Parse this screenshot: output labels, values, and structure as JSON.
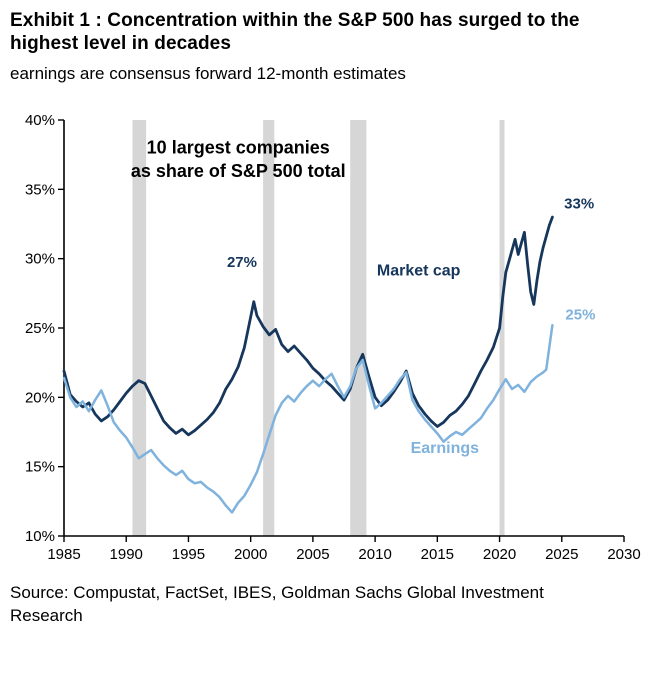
{
  "header": {
    "title": "Exhibit 1 : Concentration within the S&P 500 has surged to the highest level in decades",
    "subtitle": "earnings are consensus forward 12-month estimates"
  },
  "footer": {
    "source": "Source: Compustat, FactSet, IBES, Goldman Sachs Global Investment Research"
  },
  "chart_data": {
    "type": "line",
    "title": "10 largest companies as share of S&P 500 total",
    "xlabel": "",
    "ylabel": "",
    "xlim": [
      1985,
      2030
    ],
    "ylim": [
      10,
      40
    ],
    "x_ticks": [
      1985,
      1990,
      1995,
      2000,
      2005,
      2010,
      2015,
      2020,
      2025,
      2030
    ],
    "y_ticks": [
      10,
      15,
      20,
      25,
      30,
      35,
      40
    ],
    "y_tick_suffix": "%",
    "grid": false,
    "legend_position": "inline-labels",
    "colors": {
      "market_cap": "#16365c",
      "earnings": "#7fb2dc",
      "recession_band": "#d6d6d6",
      "axis": "#000000"
    },
    "recession_bands": [
      [
        1990.5,
        1991.6
      ],
      [
        2001.0,
        2001.9
      ],
      [
        2008.0,
        2009.3
      ],
      [
        2020.0,
        2020.4
      ]
    ],
    "series": [
      {
        "name": "Market cap",
        "color": "#16365c",
        "end_label": "33%",
        "x": [
          1985,
          1985.5,
          1986,
          1986.5,
          1987,
          1987.5,
          1988,
          1988.5,
          1989,
          1989.5,
          1990,
          1990.5,
          1991,
          1991.5,
          1992,
          1992.5,
          1993,
          1993.5,
          1994,
          1994.5,
          1995,
          1995.5,
          1996,
          1996.5,
          1997,
          1997.5,
          1998,
          1998.5,
          1999,
          1999.5,
          2000,
          2000.25,
          2000.5,
          2001,
          2001.5,
          2002,
          2002.5,
          2003,
          2003.5,
          2004,
          2004.5,
          2005,
          2005.5,
          2006,
          2006.5,
          2007,
          2007.5,
          2008,
          2008.5,
          2009,
          2009.5,
          2010,
          2010.5,
          2011,
          2011.5,
          2012,
          2012.5,
          2013,
          2013.5,
          2014,
          2014.5,
          2015,
          2015.5,
          2016,
          2016.5,
          2017,
          2017.5,
          2018,
          2018.5,
          2019,
          2019.5,
          2020,
          2020.25,
          2020.5,
          2021,
          2021.25,
          2021.5,
          2022,
          2022.25,
          2022.5,
          2022.75,
          2023,
          2023.25,
          2023.5,
          2023.75,
          2024,
          2024.25
        ],
        "values": [
          21.9,
          20.2,
          19.7,
          19.3,
          19.6,
          18.8,
          18.3,
          18.6,
          19.1,
          19.7,
          20.3,
          20.8,
          21.2,
          21.0,
          20.1,
          19.2,
          18.3,
          17.8,
          17.4,
          17.7,
          17.3,
          17.6,
          18.0,
          18.4,
          18.9,
          19.6,
          20.6,
          21.3,
          22.2,
          23.6,
          25.8,
          26.9,
          25.9,
          25.1,
          24.5,
          24.9,
          23.8,
          23.3,
          23.7,
          23.2,
          22.7,
          22.1,
          21.7,
          21.2,
          20.8,
          20.3,
          19.8,
          20.6,
          22.1,
          23.1,
          21.5,
          20.0,
          19.4,
          19.8,
          20.4,
          21.1,
          21.9,
          20.3,
          19.4,
          18.8,
          18.3,
          17.9,
          18.2,
          18.7,
          19.0,
          19.5,
          20.1,
          21.0,
          21.9,
          22.7,
          23.6,
          25.0,
          27.2,
          29.0,
          30.6,
          31.4,
          30.3,
          31.9,
          29.6,
          27.6,
          26.7,
          28.4,
          29.8,
          30.8,
          31.6,
          32.4,
          33.0
        ]
      },
      {
        "name": "Earnings",
        "color": "#7fb2dc",
        "end_label": "25%",
        "x": [
          1985,
          1985.5,
          1986,
          1986.5,
          1987,
          1987.5,
          1988,
          1988.5,
          1989,
          1989.5,
          1990,
          1990.5,
          1991,
          1991.5,
          1992,
          1992.5,
          1993,
          1993.5,
          1994,
          1994.5,
          1995,
          1995.5,
          1996,
          1996.5,
          1997,
          1997.5,
          1998,
          1998.5,
          1999,
          1999.5,
          2000,
          2000.5,
          2001,
          2001.5,
          2002,
          2002.5,
          2003,
          2003.5,
          2004,
          2004.5,
          2005,
          2005.5,
          2006,
          2006.5,
          2007,
          2007.5,
          2008,
          2008.5,
          2009,
          2009.5,
          2010,
          2010.5,
          2011,
          2011.5,
          2012,
          2012.5,
          2013,
          2013.5,
          2014,
          2014.5,
          2015,
          2015.5,
          2016,
          2016.5,
          2017,
          2017.5,
          2018,
          2018.5,
          2019,
          2019.5,
          2020,
          2020.5,
          2021,
          2021.5,
          2022,
          2022.5,
          2023,
          2023.5,
          2023.75,
          2024,
          2024.25
        ],
        "values": [
          21.4,
          20.0,
          19.3,
          19.7,
          19.0,
          19.8,
          20.5,
          19.4,
          18.2,
          17.6,
          17.1,
          16.4,
          15.6,
          15.9,
          16.2,
          15.6,
          15.1,
          14.7,
          14.4,
          14.7,
          14.1,
          13.8,
          13.9,
          13.5,
          13.2,
          12.8,
          12.2,
          11.7,
          12.4,
          12.9,
          13.7,
          14.6,
          15.9,
          17.3,
          18.7,
          19.6,
          20.1,
          19.7,
          20.3,
          20.8,
          21.2,
          20.8,
          21.3,
          21.7,
          20.8,
          20.0,
          20.8,
          22.1,
          22.7,
          20.9,
          19.2,
          19.6,
          20.1,
          20.6,
          21.3,
          21.8,
          19.8,
          19.0,
          18.4,
          17.9,
          17.4,
          16.8,
          17.2,
          17.5,
          17.3,
          17.7,
          18.1,
          18.5,
          19.2,
          19.8,
          20.6,
          21.3,
          20.6,
          20.9,
          20.4,
          21.1,
          21.5,
          21.8,
          22.0,
          23.6,
          25.2
        ]
      }
    ],
    "annotations": [
      {
        "text": "10 largest companies",
        "x": 1999,
        "y": 37.6,
        "color": "#000000",
        "size": 18,
        "weight": "bold",
        "anchor": "middle"
      },
      {
        "text": "as share of S&P 500 total",
        "x": 1999,
        "y": 35.9,
        "color": "#000000",
        "size": 18,
        "weight": "bold",
        "anchor": "middle"
      },
      {
        "text": "27%",
        "x": 1999.3,
        "y": 29.4,
        "color": "#16365c",
        "size": 15,
        "weight": "bold",
        "anchor": "middle"
      },
      {
        "text": "Market cap",
        "x": 2013.5,
        "y": 28.8,
        "color": "#16365c",
        "size": 16,
        "weight": "bold",
        "anchor": "middle"
      },
      {
        "text": "33%",
        "x": 2026.4,
        "y": 33.6,
        "color": "#16365c",
        "size": 15,
        "weight": "bold",
        "anchor": "middle"
      },
      {
        "text": "25%",
        "x": 2026.5,
        "y": 25.6,
        "color": "#7fb2dc",
        "size": 15,
        "weight": "bold",
        "anchor": "middle"
      },
      {
        "text": "Earnings",
        "x": 2015.6,
        "y": 16.0,
        "color": "#7fb2dc",
        "size": 16,
        "weight": "bold",
        "anchor": "middle"
      }
    ]
  }
}
